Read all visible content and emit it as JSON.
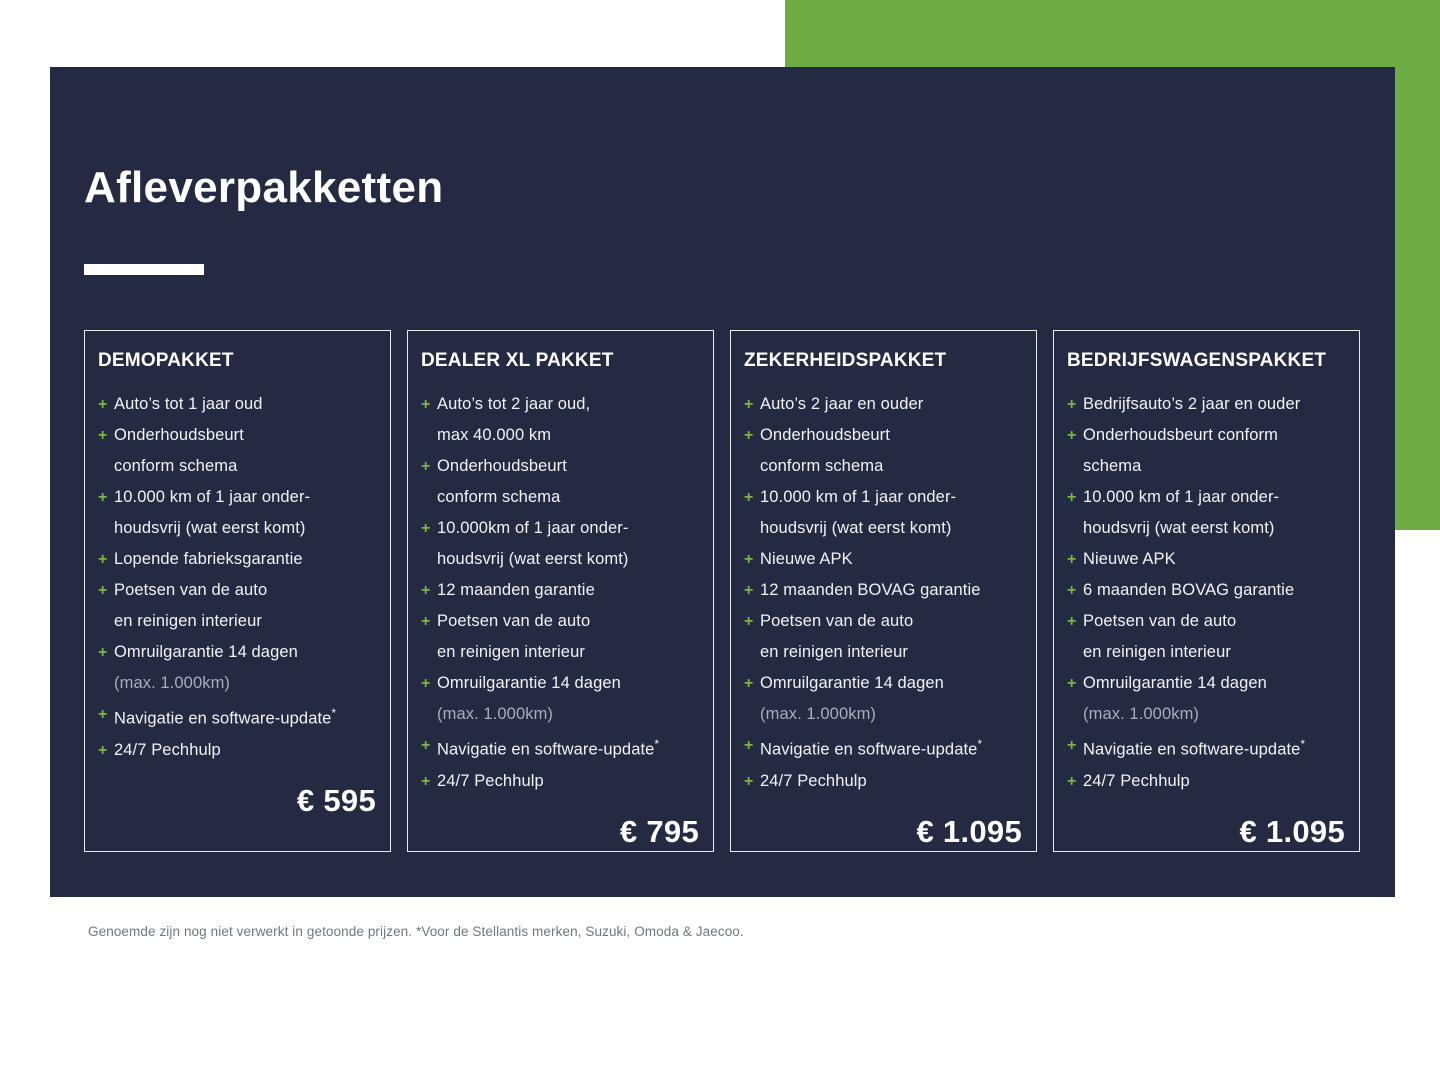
{
  "title": "Afleverpakketten",
  "colors": {
    "navy": "#232A42",
    "green": "#6FAD44",
    "plus_green": "#7CB644",
    "item_text": "#F1F3F6",
    "dim_text": "#A8AEBC",
    "footnote_gray": "#6F7683",
    "card_border": "#E9EBEF"
  },
  "packages": [
    {
      "name": "DEMOPAKKET",
      "price": "€ 595",
      "features": [
        {
          "lines": [
            {
              "text": "Auto’s tot 1 jaar oud"
            }
          ]
        },
        {
          "lines": [
            {
              "text": "Onderhoudsbeurt"
            },
            {
              "text": "conform schema"
            }
          ]
        },
        {
          "lines": [
            {
              "text": "10.000 km of 1 jaar onder-"
            },
            {
              "text": "houdsvrij (wat eerst komt)"
            }
          ]
        },
        {
          "lines": [
            {
              "text": "Lopende fabrieksgarantie"
            }
          ]
        },
        {
          "lines": [
            {
              "text": "Poetsen van de auto"
            },
            {
              "text": "en reinigen interieur"
            }
          ]
        },
        {
          "lines": [
            {
              "text": "Omruilgarantie 14 dagen"
            },
            {
              "text": "(max. 1.000km)",
              "dim": true
            }
          ]
        },
        {
          "lines": [
            {
              "text": "Navigatie en software-update*"
            }
          ]
        },
        {
          "lines": [
            {
              "text": "24/7 Pechhulp"
            }
          ]
        }
      ]
    },
    {
      "name": "DEALER XL PAKKET",
      "price": "€ 795",
      "features": [
        {
          "lines": [
            {
              "text": "Auto’s tot 2 jaar oud,"
            },
            {
              "text": "max 40.000 km"
            }
          ]
        },
        {
          "lines": [
            {
              "text": "Onderhoudsbeurt"
            },
            {
              "text": "conform schema"
            }
          ]
        },
        {
          "lines": [
            {
              "text": "10.000km of 1 jaar onder-"
            },
            {
              "text": "houdsvrij (wat eerst komt)"
            }
          ]
        },
        {
          "lines": [
            {
              "text": "12 maanden garantie"
            }
          ]
        },
        {
          "lines": [
            {
              "text": "Poetsen van de auto"
            },
            {
              "text": "en reinigen interieur"
            }
          ]
        },
        {
          "lines": [
            {
              "text": "Omruilgarantie 14 dagen"
            },
            {
              "text": "(max. 1.000km)",
              "dim": true
            }
          ]
        },
        {
          "lines": [
            {
              "text": "Navigatie en software-update*"
            }
          ]
        },
        {
          "lines": [
            {
              "text": "24/7 Pechhulp"
            }
          ]
        }
      ]
    },
    {
      "name": "ZEKERHEIDSPAKKET",
      "price": "€ 1.095",
      "features": [
        {
          "lines": [
            {
              "text": "Auto’s 2 jaar en ouder"
            }
          ]
        },
        {
          "lines": [
            {
              "text": "Onderhoudsbeurt"
            },
            {
              "text": "conform schema"
            }
          ]
        },
        {
          "lines": [
            {
              "text": "10.000 km of 1 jaar onder-"
            },
            {
              "text": "houdsvrij (wat eerst komt)"
            }
          ]
        },
        {
          "lines": [
            {
              "text": "Nieuwe APK"
            }
          ]
        },
        {
          "lines": [
            {
              "text": "12 maanden BOVAG garantie"
            }
          ]
        },
        {
          "lines": [
            {
              "text": "Poetsen van de auto"
            },
            {
              "text": "en reinigen interieur"
            }
          ]
        },
        {
          "lines": [
            {
              "text": "Omruilgarantie 14 dagen"
            },
            {
              "text": "(max. 1.000km)",
              "dim": true
            }
          ]
        },
        {
          "lines": [
            {
              "text": "Navigatie en software-update*"
            }
          ]
        },
        {
          "lines": [
            {
              "text": "24/7 Pechhulp"
            }
          ]
        }
      ]
    },
    {
      "name": "BEDRIJFSWAGENSPAKKET",
      "price": "€ 1.095",
      "features": [
        {
          "lines": [
            {
              "text": "Bedrijfsauto’s 2 jaar en ouder"
            }
          ]
        },
        {
          "lines": [
            {
              "text": "Onderhoudsbeurt conform"
            },
            {
              "text": "schema"
            }
          ]
        },
        {
          "lines": [
            {
              "text": "10.000 km of 1 jaar onder-"
            },
            {
              "text": "houdsvrij (wat eerst komt)"
            }
          ]
        },
        {
          "lines": [
            {
              "text": "Nieuwe APK"
            }
          ]
        },
        {
          "lines": [
            {
              "text": "6 maanden BOVAG garantie"
            }
          ]
        },
        {
          "lines": [
            {
              "text": "Poetsen van de auto"
            },
            {
              "text": "en reinigen interieur"
            }
          ]
        },
        {
          "lines": [
            {
              "text": "Omruilgarantie 14 dagen"
            },
            {
              "text": "(max. 1.000km)",
              "dim": true
            }
          ]
        },
        {
          "lines": [
            {
              "text": "Navigatie en software-update*"
            }
          ]
        },
        {
          "lines": [
            {
              "text": "24/7 Pechhulp"
            }
          ]
        }
      ]
    }
  ],
  "footnote": "Genoemde zijn nog niet verwerkt in getoonde prijzen. *Voor de Stellantis merken, Suzuki, Omoda & Jaecoo."
}
